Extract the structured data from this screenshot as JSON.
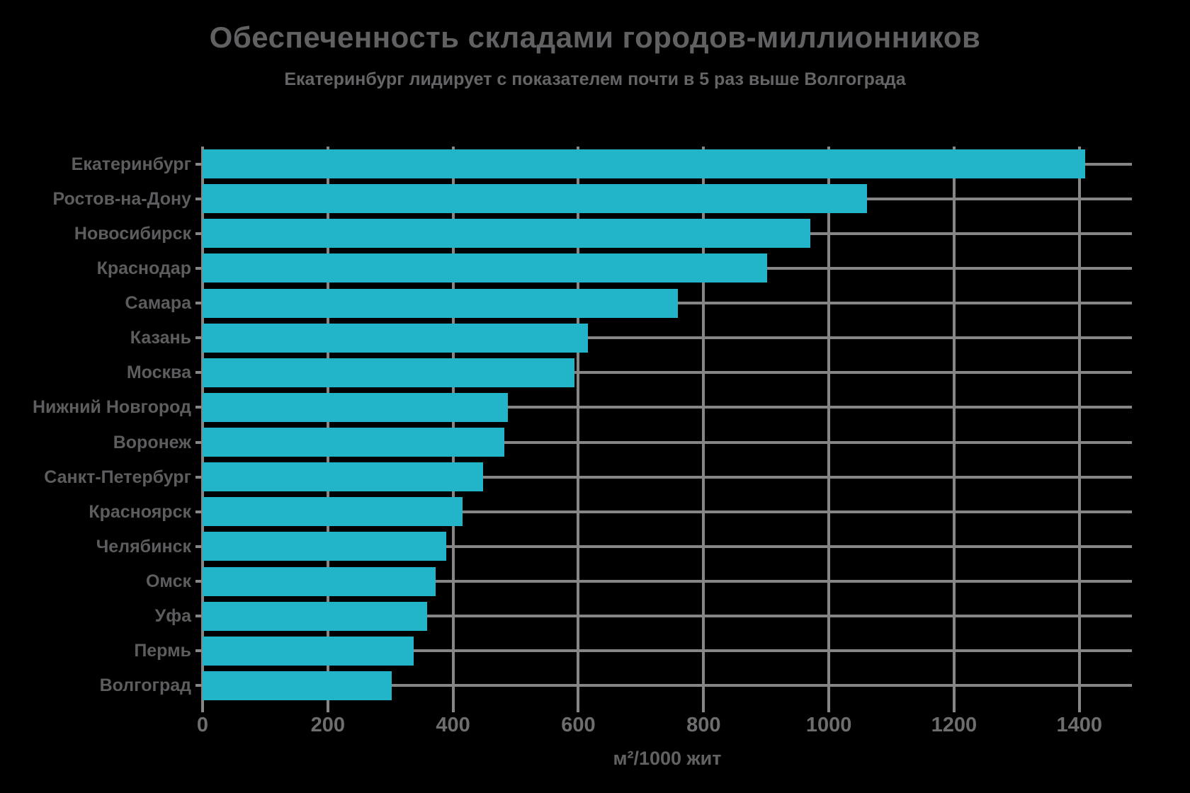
{
  "chart_data": {
    "type": "bar",
    "orientation": "horizontal",
    "title": "Обеспеченность складами городов-миллионников",
    "subtitle": "Екатеринбург лидирует с показателем почти в 5 раз выше Волгограда",
    "xlabel": "м²/1000 жит",
    "categories": [
      "Екатеринбург",
      "Ростов-на-Дону",
      "Новосибирск",
      "Краснодар",
      "Самара",
      "Казань",
      "Москва",
      "Нижний Новгород",
      "Воронеж",
      "Санкт-Петербург",
      "Красноярск",
      "Челябинск",
      "Омск",
      "Уфа",
      "Пермь",
      "Волгоград"
    ],
    "values": [
      1409,
      1061,
      970,
      901,
      759,
      615,
      594,
      488,
      482,
      448,
      415,
      389,
      372,
      359,
      337,
      302
    ],
    "x_ticks": [
      0,
      200,
      400,
      600,
      800,
      1000,
      1200,
      1400
    ],
    "xlim": [
      0,
      1484
    ],
    "grid": true,
    "legend": false
  },
  "colors": {
    "background": "#000000",
    "bar": "#22b5c9",
    "grid": "#868686",
    "title_text": "#616163",
    "subtitle_text": "#656567",
    "category_text": "#5d5d5f",
    "tick_text": "#6e6e70",
    "unit_text": "#626264"
  }
}
